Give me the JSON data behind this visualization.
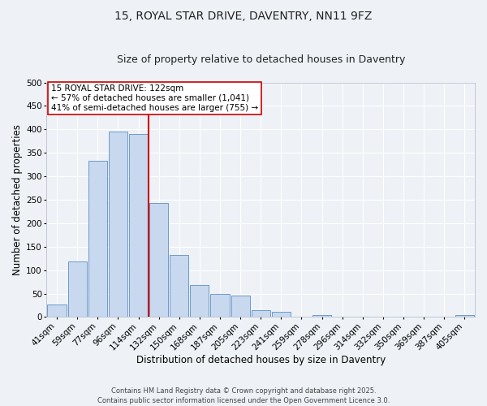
{
  "title": "15, ROYAL STAR DRIVE, DAVENTRY, NN11 9FZ",
  "subtitle": "Size of property relative to detached houses in Daventry",
  "xlabel": "Distribution of detached houses by size in Daventry",
  "ylabel": "Number of detached properties",
  "categories": [
    "41sqm",
    "59sqm",
    "77sqm",
    "96sqm",
    "114sqm",
    "132sqm",
    "150sqm",
    "168sqm",
    "187sqm",
    "205sqm",
    "223sqm",
    "241sqm",
    "259sqm",
    "278sqm",
    "296sqm",
    "314sqm",
    "332sqm",
    "350sqm",
    "369sqm",
    "387sqm",
    "405sqm"
  ],
  "values": [
    27,
    118,
    333,
    395,
    390,
    243,
    132,
    68,
    50,
    45,
    15,
    11,
    0,
    5,
    0,
    0,
    0,
    0,
    0,
    0,
    5
  ],
  "bar_color": "#c8d8ee",
  "bar_edge_color": "#5b8ec4",
  "vline_index": 4.5,
  "vline_color": "#cc0000",
  "annotation_box_text": "15 ROYAL STAR DRIVE: 122sqm\n← 57% of detached houses are smaller (1,041)\n41% of semi-detached houses are larger (755) →",
  "annotation_box_color": "#cc0000",
  "annotation_box_fill": "white",
  "ylim": [
    0,
    500
  ],
  "yticks": [
    0,
    50,
    100,
    150,
    200,
    250,
    300,
    350,
    400,
    450,
    500
  ],
  "background_color": "#eef2f7",
  "grid_color": "white",
  "title_fontsize": 10,
  "subtitle_fontsize": 9,
  "axis_label_fontsize": 8.5,
  "tick_fontsize": 7.5,
  "annotation_fontsize": 7.5,
  "footer_text": "Contains HM Land Registry data © Crown copyright and database right 2025.\nContains public sector information licensed under the Open Government Licence 3.0."
}
